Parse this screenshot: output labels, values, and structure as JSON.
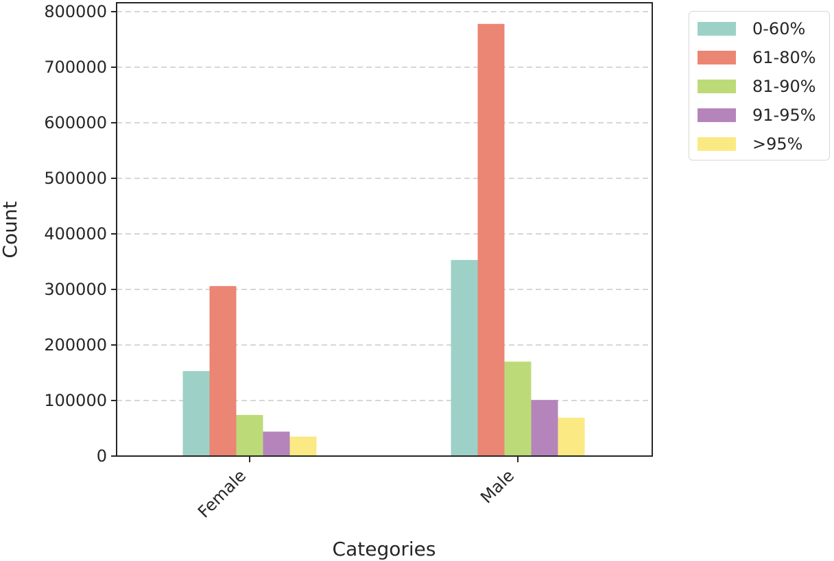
{
  "chart_data": {
    "type": "bar",
    "title": "",
    "xlabel": "Categories",
    "ylabel": "Count",
    "categories": [
      "Female",
      "Male"
    ],
    "series": [
      {
        "name": "0-60%",
        "color": "#9dd1c7",
        "values": [
          153000,
          353000
        ]
      },
      {
        "name": "61-80%",
        "color": "#eb8574",
        "values": [
          306000,
          778000
        ]
      },
      {
        "name": "81-90%",
        "color": "#bcdb78",
        "values": [
          74000,
          170000
        ]
      },
      {
        "name": "91-95%",
        "color": "#b484bb",
        "values": [
          44000,
          101000
        ]
      },
      {
        "name": ">95%",
        "color": "#fbe983",
        "values": [
          35000,
          69000
        ]
      }
    ],
    "ylim": [
      0,
      800000
    ],
    "yticks": [
      0,
      100000,
      200000,
      300000,
      400000,
      500000,
      600000,
      700000,
      800000
    ],
    "ytick_labels": [
      "0",
      "100000",
      "200000",
      "300000",
      "400000",
      "500000",
      "600000",
      "700000",
      "800000"
    ],
    "grid": {
      "y": true,
      "style": "dashed"
    },
    "legend_position": "upper right outside",
    "xtick_rotation": 45
  }
}
